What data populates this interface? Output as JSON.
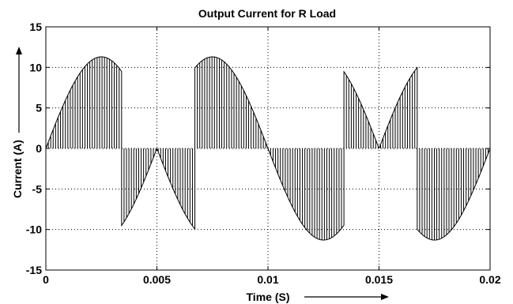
{
  "chart_data": {
    "type": "line",
    "title": "Output Current for R Load",
    "xlabel": "Time (S)",
    "ylabel": "Current (A)",
    "xlim": [
      0,
      0.02
    ],
    "ylim": [
      -15,
      15
    ],
    "xticks": [
      0,
      0.005,
      0.01,
      0.015,
      0.02
    ],
    "xtick_labels": [
      "0",
      "0.005",
      "0.01",
      "0.015",
      "0.02"
    ],
    "yticks": [
      -15,
      -10,
      -5,
      0,
      5,
      10,
      15
    ],
    "ytick_labels": [
      "-15",
      "-10",
      "-5",
      "0",
      "5",
      "10",
      "15"
    ],
    "grid": true,
    "grid_style": "dotted",
    "line_color": "#000000",
    "series": [
      {
        "description_of_shape": "PWM-chopped current; envelope of 11.3*sin(2*pi*100*t) with sign switching every 1/300 s",
        "amplitude": 11.3,
        "fundamental_hz": 100,
        "pulse_period": 0.00011,
        "segments": [
          {
            "t_start": 0.0,
            "t_end": 0.00333,
            "sign": 1
          },
          {
            "t_start": 0.00333,
            "t_end": 0.00667,
            "sign": -1
          },
          {
            "t_start": 0.00667,
            "t_end": 0.01,
            "sign": 1
          },
          {
            "t_start": 0.01,
            "t_end": 0.01333,
            "sign": -1
          },
          {
            "t_start": 0.01333,
            "t_end": 0.01667,
            "sign": 1
          },
          {
            "t_start": 0.01667,
            "t_end": 0.02,
            "sign": -1
          }
        ]
      }
    ]
  }
}
